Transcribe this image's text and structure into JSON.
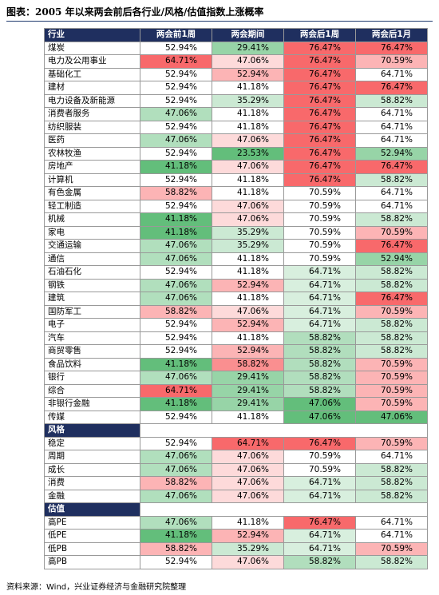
{
  "title": "图表：2005 年以来两会前后各行业/风格/估值指数上涨概率",
  "table": {
    "header": [
      "行业",
      "两会前1周",
      "两会期间",
      "两会后1周",
      "两会后1月"
    ],
    "sections": [
      {
        "rows": [
          {
            "label": "煤炭",
            "values": [
              "52.94%",
              "29.41%",
              "76.47%",
              "76.47%"
            ]
          },
          {
            "label": "电力及公用事业",
            "values": [
              "64.71%",
              "47.06%",
              "76.47%",
              "70.59%"
            ]
          },
          {
            "label": "基础化工",
            "values": [
              "52.94%",
              "52.94%",
              "76.47%",
              "64.71%"
            ]
          },
          {
            "label": "建材",
            "values": [
              "52.94%",
              "41.18%",
              "76.47%",
              "76.47%"
            ]
          },
          {
            "label": "电力设备及新能源",
            "values": [
              "52.94%",
              "35.29%",
              "76.47%",
              "58.82%"
            ]
          },
          {
            "label": "消费者服务",
            "values": [
              "47.06%",
              "41.18%",
              "76.47%",
              "64.71%"
            ]
          },
          {
            "label": "纺织服装",
            "values": [
              "52.94%",
              "41.18%",
              "76.47%",
              "64.71%"
            ]
          },
          {
            "label": "医药",
            "values": [
              "47.06%",
              "47.06%",
              "76.47%",
              "64.71%"
            ]
          },
          {
            "label": "农林牧渔",
            "values": [
              "52.94%",
              "23.53%",
              "76.47%",
              "52.94%"
            ]
          },
          {
            "label": "房地产",
            "values": [
              "41.18%",
              "47.06%",
              "76.47%",
              "76.47%"
            ]
          },
          {
            "label": "计算机",
            "values": [
              "52.94%",
              "41.18%",
              "76.47%",
              "58.82%"
            ]
          },
          {
            "label": "有色金属",
            "values": [
              "58.82%",
              "41.18%",
              "70.59%",
              "64.71%"
            ]
          },
          {
            "label": "轻工制造",
            "values": [
              "52.94%",
              "47.06%",
              "70.59%",
              "64.71%"
            ]
          },
          {
            "label": "机械",
            "values": [
              "41.18%",
              "47.06%",
              "70.59%",
              "58.82%"
            ]
          },
          {
            "label": "家电",
            "values": [
              "41.18%",
              "35.29%",
              "70.59%",
              "70.59%"
            ]
          },
          {
            "label": "交通运输",
            "values": [
              "47.06%",
              "35.29%",
              "70.59%",
              "76.47%"
            ]
          },
          {
            "label": "通信",
            "values": [
              "47.06%",
              "41.18%",
              "70.59%",
              "52.94%"
            ]
          },
          {
            "label": "石油石化",
            "values": [
              "52.94%",
              "41.18%",
              "64.71%",
              "58.82%"
            ]
          },
          {
            "label": "钢铁",
            "values": [
              "47.06%",
              "52.94%",
              "64.71%",
              "58.82%"
            ]
          },
          {
            "label": "建筑",
            "values": [
              "47.06%",
              "41.18%",
              "64.71%",
              "76.47%"
            ]
          },
          {
            "label": "国防军工",
            "values": [
              "58.82%",
              "47.06%",
              "64.71%",
              "70.59%"
            ]
          },
          {
            "label": "电子",
            "values": [
              "52.94%",
              "52.94%",
              "64.71%",
              "58.82%"
            ]
          },
          {
            "label": "汽车",
            "values": [
              "52.94%",
              "41.18%",
              "58.82%",
              "58.82%"
            ]
          },
          {
            "label": "商贸零售",
            "values": [
              "52.94%",
              "52.94%",
              "58.82%",
              "58.82%"
            ]
          },
          {
            "label": "食品饮料",
            "values": [
              "41.18%",
              "58.82%",
              "58.82%",
              "70.59%"
            ]
          },
          {
            "label": "银行",
            "values": [
              "47.06%",
              "29.41%",
              "58.82%",
              "70.59%"
            ]
          },
          {
            "label": "综合",
            "values": [
              "64.71%",
              "29.41%",
              "58.82%",
              "70.59%"
            ]
          },
          {
            "label": "非银行金融",
            "values": [
              "41.18%",
              "29.41%",
              "47.06%",
              "70.59%"
            ]
          },
          {
            "label": "传媒",
            "values": [
              "52.94%",
              "41.18%",
              "47.06%",
              "47.06%"
            ]
          }
        ]
      },
      {
        "title": "风格",
        "rows": [
          {
            "label": "稳定",
            "values": [
              "52.94%",
              "64.71%",
              "76.47%",
              "70.59%"
            ]
          },
          {
            "label": "周期",
            "values": [
              "47.06%",
              "47.06%",
              "70.59%",
              "64.71%"
            ]
          },
          {
            "label": "成长",
            "values": [
              "47.06%",
              "47.06%",
              "70.59%",
              "58.82%"
            ]
          },
          {
            "label": "消费",
            "values": [
              "58.82%",
              "47.06%",
              "64.71%",
              "58.82%"
            ]
          },
          {
            "label": "金融",
            "values": [
              "47.06%",
              "47.06%",
              "64.71%",
              "58.82%"
            ]
          }
        ]
      },
      {
        "title": "估值",
        "rows": [
          {
            "label": "高PE",
            "values": [
              "47.06%",
              "41.18%",
              "76.47%",
              "64.71%"
            ]
          },
          {
            "label": "低PE",
            "values": [
              "41.18%",
              "52.94%",
              "64.71%",
              "64.71%"
            ]
          },
          {
            "label": "低PB",
            "values": [
              "58.82%",
              "35.29%",
              "64.71%",
              "70.59%"
            ]
          },
          {
            "label": "高PB",
            "values": [
              "52.94%",
              "47.06%",
              "58.82%",
              "58.82%"
            ]
          }
        ]
      }
    ]
  },
  "source": "资料来源：Wind，兴业证券经济与金融研究院整理"
}
